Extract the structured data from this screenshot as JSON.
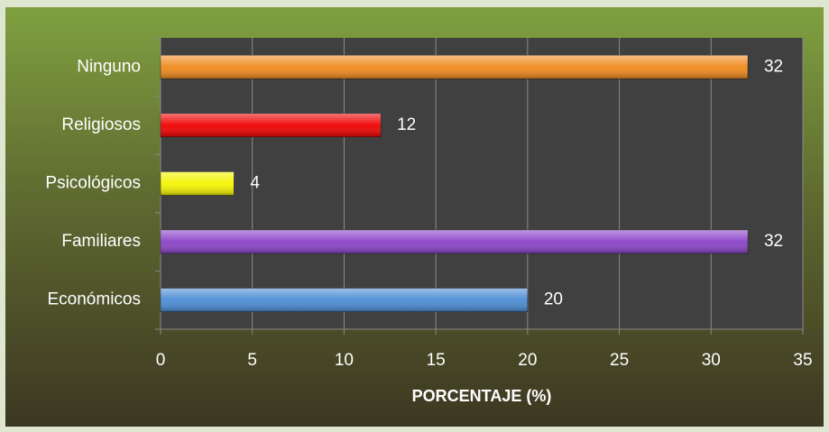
{
  "chart_data": {
    "type": "bar",
    "orientation": "horizontal",
    "x_label": "PORCENTAJE (%)",
    "categories": [
      "Económicos",
      "Familiares",
      "Psicológicos",
      "Religiosos",
      "Ninguno"
    ],
    "values": [
      20,
      32,
      4,
      12,
      32
    ],
    "colors": [
      "#4a8bd4",
      "#8a42c8",
      "#f4f400",
      "#f00000",
      "#f08a1c"
    ],
    "xlim": [
      0,
      35
    ],
    "xticks": [
      0,
      5,
      10,
      15,
      20,
      25,
      30,
      35
    ],
    "grid": true
  }
}
